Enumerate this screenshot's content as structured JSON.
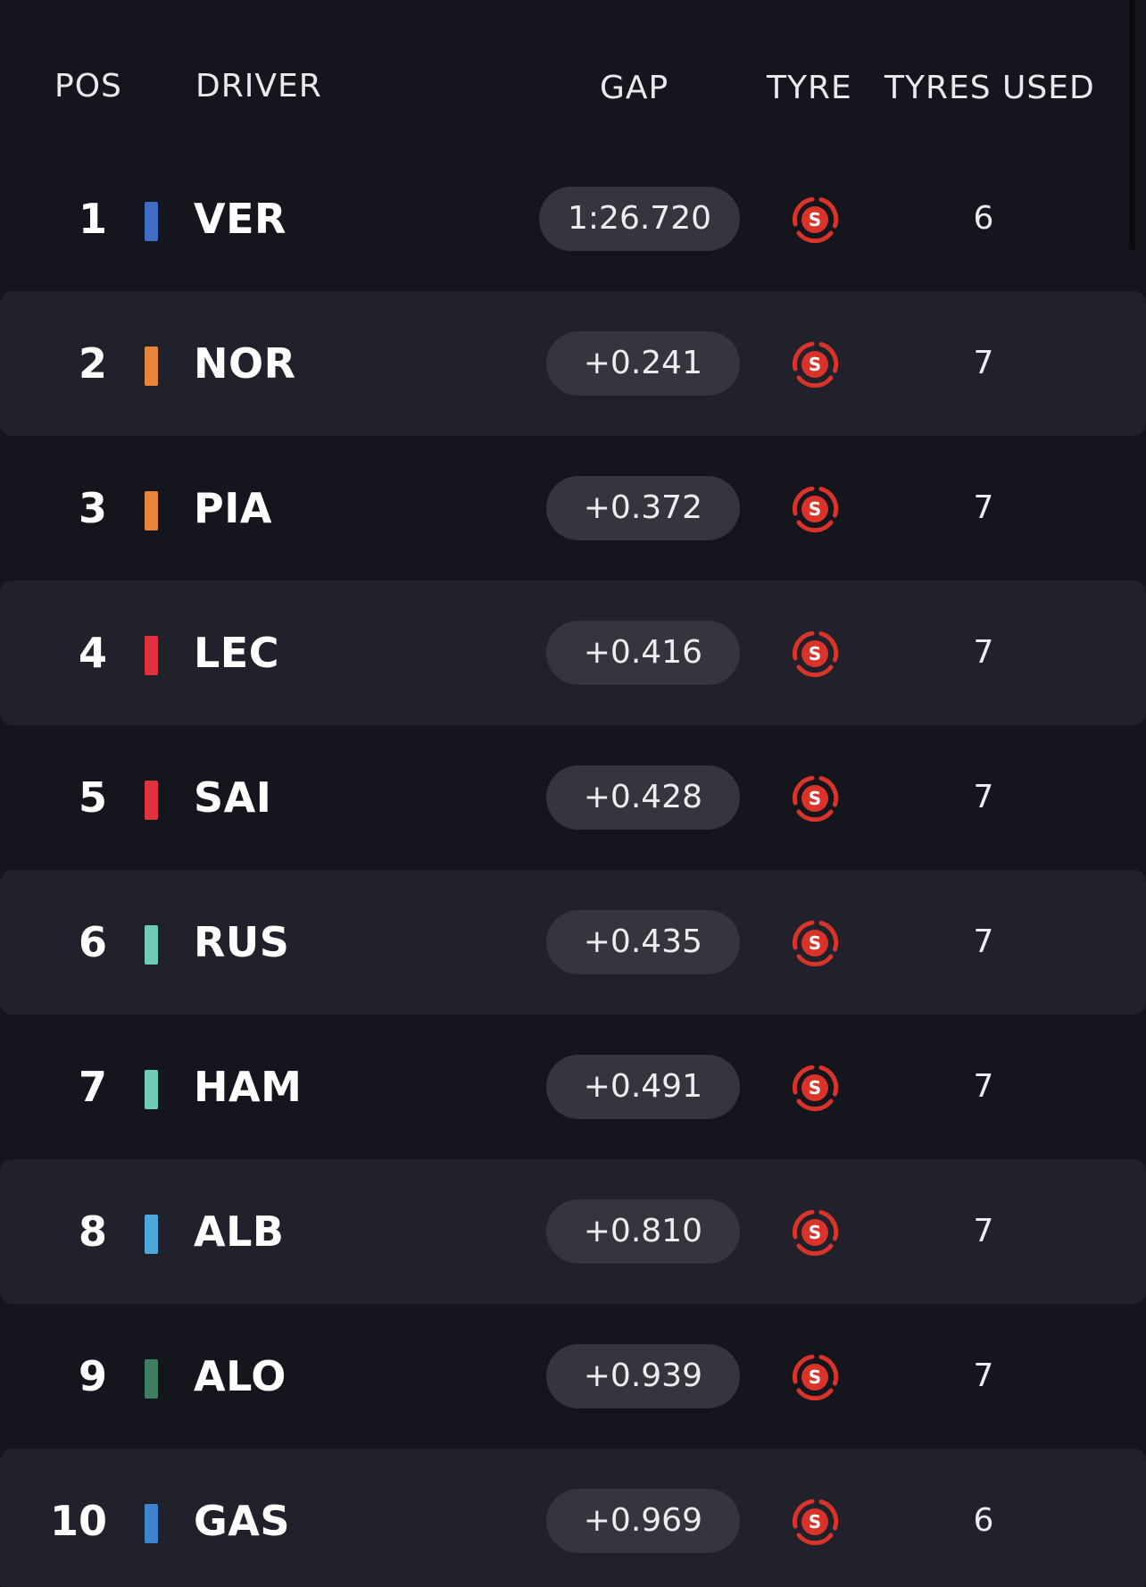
{
  "colors": {
    "background": "#15151d",
    "row_alt": "#20212a",
    "pill": "#34353d",
    "soft_tyre": "#d8342a"
  },
  "header": {
    "pos": "POS",
    "driver": "DRIVER",
    "gap": "GAP",
    "tyre": "TYRE",
    "tyres_used": "TYRES USED"
  },
  "rows": [
    {
      "pos": "1",
      "code": "VER",
      "team_color": "#3f6cc4",
      "gap": "1:26.720",
      "tyre_compound": "S",
      "tyre_icon": "soft-tyre-icon",
      "tyres_used": "6"
    },
    {
      "pos": "2",
      "code": "NOR",
      "team_color": "#e8853a",
      "gap": "+0.241",
      "tyre_compound": "S",
      "tyre_icon": "soft-tyre-icon",
      "tyres_used": "7"
    },
    {
      "pos": "3",
      "code": "PIA",
      "team_color": "#e8853a",
      "gap": "+0.372",
      "tyre_compound": "S",
      "tyre_icon": "soft-tyre-icon",
      "tyres_used": "7"
    },
    {
      "pos": "4",
      "code": "LEC",
      "team_color": "#e0323c",
      "gap": "+0.416",
      "tyre_compound": "S",
      "tyre_icon": "soft-tyre-icon",
      "tyres_used": "7"
    },
    {
      "pos": "5",
      "code": "SAI",
      "team_color": "#e0323c",
      "gap": "+0.428",
      "tyre_compound": "S",
      "tyre_icon": "soft-tyre-icon",
      "tyres_used": "7"
    },
    {
      "pos": "6",
      "code": "RUS",
      "team_color": "#6fcdb6",
      "gap": "+0.435",
      "tyre_compound": "S",
      "tyre_icon": "soft-tyre-icon",
      "tyres_used": "7"
    },
    {
      "pos": "7",
      "code": "HAM",
      "team_color": "#6fcdb6",
      "gap": "+0.491",
      "tyre_compound": "S",
      "tyre_icon": "soft-tyre-icon",
      "tyres_used": "7"
    },
    {
      "pos": "8",
      "code": "ALB",
      "team_color": "#4fa8dc",
      "gap": "+0.810",
      "tyre_compound": "S",
      "tyre_icon": "soft-tyre-icon",
      "tyres_used": "7"
    },
    {
      "pos": "9",
      "code": "ALO",
      "team_color": "#3f7d60",
      "gap": "+0.939",
      "tyre_compound": "S",
      "tyre_icon": "soft-tyre-icon",
      "tyres_used": "7"
    },
    {
      "pos": "10",
      "code": "GAS",
      "team_color": "#3f84cf",
      "gap": "+0.969",
      "tyre_compound": "S",
      "tyre_icon": "soft-tyre-icon",
      "tyres_used": "6"
    }
  ]
}
